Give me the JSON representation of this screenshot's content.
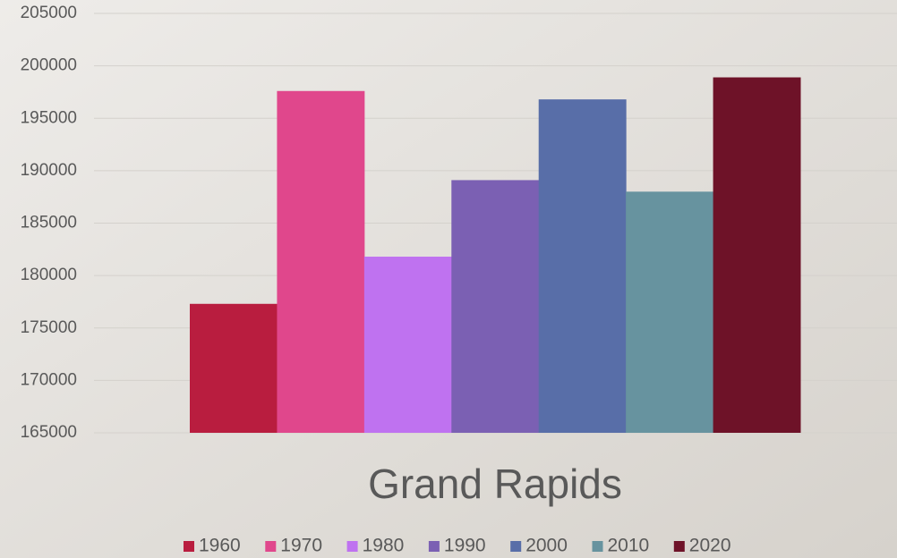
{
  "chart_data": {
    "type": "bar",
    "categories": [
      "Grand Rapids"
    ],
    "series": [
      {
        "name": "1960",
        "color": "#b91d3f",
        "values": [
          177300
        ]
      },
      {
        "name": "1970",
        "color": "#e0478c",
        "values": [
          197600
        ]
      },
      {
        "name": "1980",
        "color": "#bf72f0",
        "values": [
          181800
        ]
      },
      {
        "name": "1990",
        "color": "#7b60b3",
        "values": [
          189100
        ]
      },
      {
        "name": "2000",
        "color": "#586ea8",
        "values": [
          196800
        ]
      },
      {
        "name": "2010",
        "color": "#67939f",
        "values": [
          188000
        ]
      },
      {
        "name": "2020",
        "color": "#6e1228",
        "values": [
          198900
        ]
      }
    ],
    "ylim": [
      165000,
      205000
    ],
    "yticks": [
      165000,
      170000,
      175000,
      180000,
      185000,
      190000,
      195000,
      200000,
      205000
    ],
    "grid": true,
    "legend": "bottom"
  }
}
